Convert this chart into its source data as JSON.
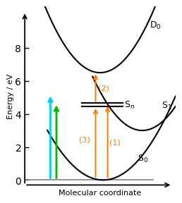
{
  "xlabel": "Molecular coordinate",
  "ylabel": "Energy / eV",
  "ylim": [
    -0.3,
    10.5
  ],
  "xlim": [
    0,
    10
  ],
  "background_color": "#ffffff",
  "curve_color": "#000000",
  "arrow_color_cyan": "#00ccff",
  "arrow_color_green": "#00bb00",
  "arrow_color_orange": "#ff7700",
  "S0_label": "S$_0$",
  "S1_label": "S$_1$",
  "Sn_label": "S$_n$",
  "D0_label": "D$_0$",
  "S0_min_x": 5.2,
  "S0_min_y": 0.0,
  "S0_a": 0.22,
  "S1_min_x": 7.8,
  "S1_min_y": 3.0,
  "S1_a": 0.3,
  "D0_min_x": 5.0,
  "D0_min_y": 6.5,
  "D0_a": 0.3,
  "Sn_x1": 3.8,
  "Sn_x2": 6.5,
  "Sn_y1": 4.45,
  "Sn_y2": 4.65,
  "baseline_y": 0.0,
  "orange_x1": 4.7,
  "orange_x2": 5.5,
  "cyan_x": 1.7,
  "green_x": 2.1,
  "yticks": [
    0,
    2,
    4,
    6,
    8
  ]
}
